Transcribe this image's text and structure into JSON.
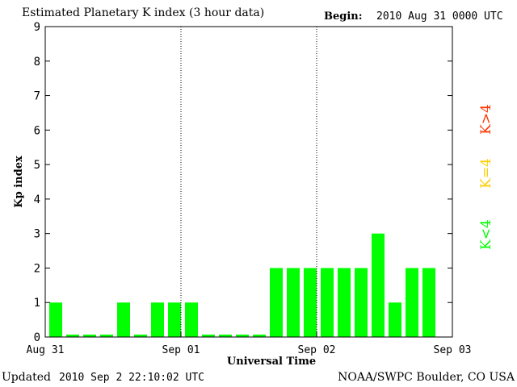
{
  "header": {
    "title": "Estimated Planetary K index (3 hour data)",
    "begin_label": "Begin:",
    "begin_value": "2010 Aug 31 0000 UTC"
  },
  "footer": {
    "updated_label": "Updated",
    "updated_value": "2010 Sep  2 22:10:02 UTC",
    "credit": "NOAA/SWPC Boulder, CO USA"
  },
  "legend": {
    "high": {
      "label": "K>4",
      "color": "#ff3300"
    },
    "equal": {
      "label": "K=4",
      "color": "#ffcc00"
    },
    "low": {
      "label": "K<4",
      "color": "#00ff00"
    }
  },
  "chart_data": {
    "type": "bar",
    "title": "Estimated Planetary K index (3 hour data)",
    "xlabel": "Universal Time",
    "ylabel": "Kp index",
    "ylim": [
      0,
      9
    ],
    "yticks": [
      0,
      1,
      2,
      3,
      4,
      5,
      6,
      7,
      8,
      9
    ],
    "xticks": [
      "Aug 31",
      "Sep 01",
      "Sep 02",
      "Sep 03"
    ],
    "day_dividers": true,
    "bar_color": "#00ff00",
    "values": [
      1,
      0.07,
      0.07,
      0.07,
      1,
      0.07,
      1,
      1,
      1,
      0.07,
      0.07,
      0.07,
      0.07,
      2,
      2,
      2,
      2,
      2,
      2,
      3,
      1,
      2,
      2
    ]
  }
}
